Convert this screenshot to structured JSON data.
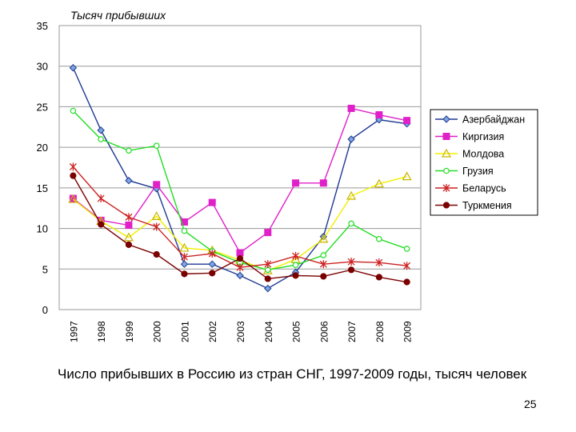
{
  "chart_data": {
    "type": "line",
    "title": "",
    "ylabel": "Тысяч прибывших",
    "xlabel": "",
    "ylim": [
      0,
      35
    ],
    "yticks": [
      0,
      5,
      10,
      15,
      20,
      25,
      30,
      35
    ],
    "grid": "horizontal",
    "legend": "right",
    "categories": [
      "1997",
      "1998",
      "1999",
      "2000",
      "2001",
      "2002",
      "2003",
      "2004",
      "2005",
      "2006",
      "2007",
      "2008",
      "2009"
    ],
    "series": [
      {
        "name": "Азербайджан",
        "color": "#1f3a93",
        "marker": "diamond",
        "values": [
          29.8,
          22.1,
          15.9,
          14.9,
          5.6,
          5.6,
          4.2,
          2.6,
          4.6,
          9.0,
          21.0,
          23.4,
          22.9
        ]
      },
      {
        "name": "Киргизия",
        "color": "#e020c8",
        "marker": "square",
        "values": [
          13.7,
          11.0,
          10.4,
          15.4,
          10.8,
          13.2,
          7.0,
          9.5,
          15.6,
          15.6,
          24.8,
          24.0,
          23.3
        ]
      },
      {
        "name": "Молдова",
        "color": "#f0f000",
        "marker": "triangle",
        "values": [
          13.6,
          10.9,
          8.9,
          11.5,
          7.6,
          7.3,
          6.1,
          4.8,
          6.2,
          8.7,
          14.0,
          15.5,
          16.4
        ]
      },
      {
        "name": "Грузия",
        "color": "#22dd22",
        "marker": "circle-open",
        "values": [
          24.5,
          21.0,
          19.6,
          20.2,
          9.7,
          7.2,
          5.8,
          4.9,
          5.5,
          6.7,
          10.6,
          8.7,
          7.5
        ]
      },
      {
        "name": "Беларусь",
        "color": "#cc2222",
        "marker": "star",
        "values": [
          17.6,
          13.7,
          11.4,
          10.2,
          6.5,
          6.9,
          5.2,
          5.6,
          6.6,
          5.6,
          5.9,
          5.8,
          5.4
        ]
      },
      {
        "name": "Туркмения",
        "color": "#7a0000",
        "marker": "circle",
        "values": [
          16.5,
          10.5,
          8.0,
          6.8,
          4.4,
          4.5,
          6.3,
          3.8,
          4.2,
          4.1,
          4.9,
          4.0,
          3.4
        ]
      }
    ]
  },
  "caption": "Число прибывших в Россию из стран СНГ, 1997-2009 годы, тысяч человек",
  "page_number": "25"
}
